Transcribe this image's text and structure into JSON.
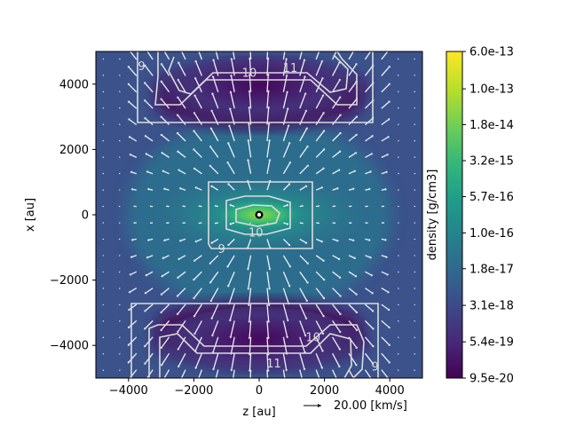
{
  "chart_data": {
    "type": "heatmap",
    "title": "",
    "xlabel": "z [au]",
    "ylabel": "x [au]",
    "xlim": [
      -5000,
      5000
    ],
    "ylim": [
      -5000,
      5000
    ],
    "x_ticks": [
      -4000,
      -2000,
      0,
      2000,
      4000
    ],
    "y_ticks": [
      4000,
      2000,
      0,
      -2000,
      -4000
    ],
    "x_tick_labels": [
      "−4000",
      "−2000",
      "0",
      "2000",
      "4000"
    ],
    "y_tick_labels": [
      "4000",
      "2000",
      "0",
      "−2000",
      "−4000"
    ],
    "colorbar": {
      "label": "density [g/cm3]",
      "colormap": "viridis",
      "scale": "log",
      "min": 9.5e-20,
      "max": 6e-13,
      "tick_labels": [
        "6.0e-13",
        "1.0e-13",
        "1.8e-14",
        "3.2e-15",
        "5.7e-16",
        "1.0e-16",
        "1.8e-17",
        "3.1e-18",
        "5.4e-19",
        "9.5e-20"
      ]
    },
    "contours": {
      "color": "#dcdcdc",
      "levels": [
        9,
        10,
        11
      ],
      "labels": [
        {
          "text": "9",
          "z": -3600,
          "x": 4550
        },
        {
          "text": "10",
          "z": -300,
          "x": 4350
        },
        {
          "text": "11",
          "z": 950,
          "x": 4500
        },
        {
          "text": "10",
          "z": -100,
          "x": -550
        },
        {
          "text": "9",
          "z": -1150,
          "x": -1050
        },
        {
          "text": "10",
          "z": 1650,
          "x": -3750
        },
        {
          "text": "11",
          "z": 450,
          "x": -4550
        },
        {
          "text": "9",
          "z": 3550,
          "x": -4650
        }
      ]
    },
    "velocity_field": {
      "reference_label": "20.00 [km/s]",
      "reference_speed_kms": 20.0
    },
    "central_source": {
      "z": 0,
      "x": 0
    }
  }
}
